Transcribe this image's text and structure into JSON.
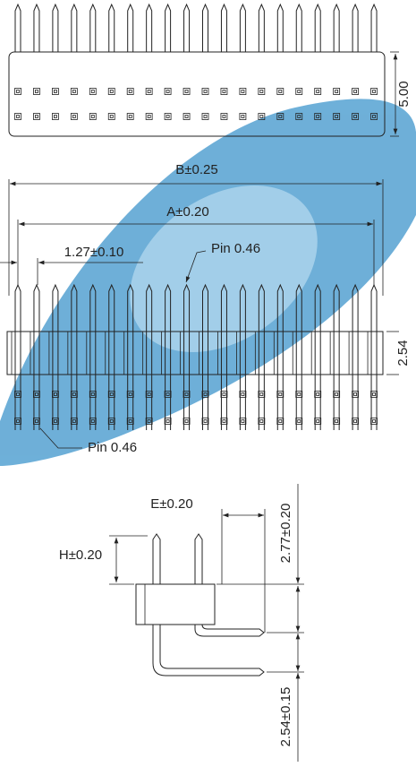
{
  "top_view": {
    "height_dim": "5.00"
  },
  "front_view": {
    "b_dim": "B±0.25",
    "a_dim": "A±0.20",
    "pitch_dim": "1.27±0.10",
    "pin_top": "Pin   0.46",
    "row_dim": "2.54",
    "pin_bottom": "Pin   0.46"
  },
  "side_view": {
    "e_dim": "E±0.20",
    "h_dim": "H±0.20",
    "tail_dim": "2.77±0.20",
    "row_pitch_dim": "2.54±0.15"
  }
}
